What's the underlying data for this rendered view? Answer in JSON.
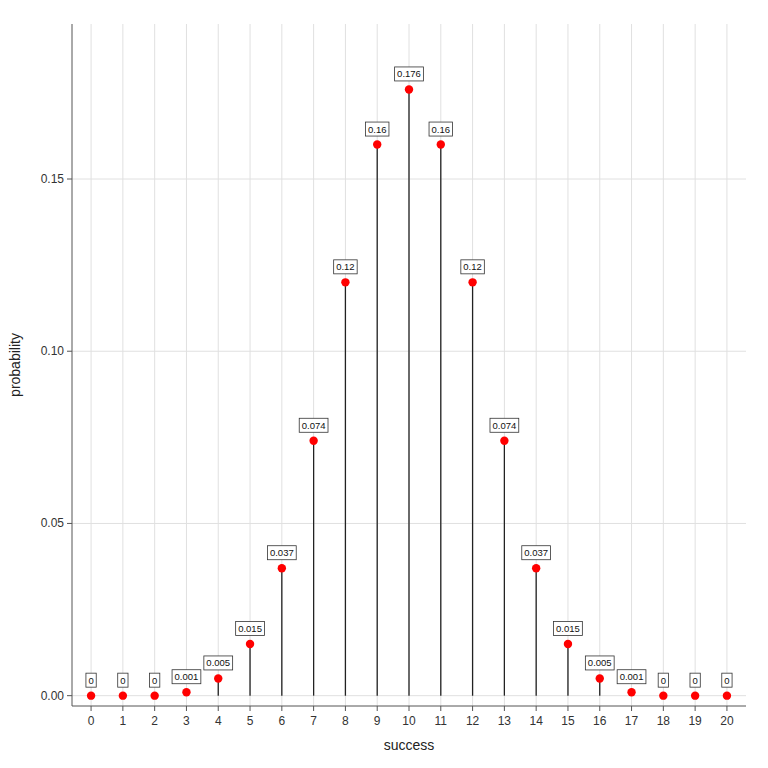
{
  "chart_data": {
    "type": "stem",
    "xlabel": "success",
    "ylabel": "probability",
    "x": [
      0,
      1,
      2,
      3,
      4,
      5,
      6,
      7,
      8,
      9,
      10,
      11,
      12,
      13,
      14,
      15,
      16,
      17,
      18,
      19,
      20
    ],
    "values": [
      0.0,
      0.0,
      0.0,
      0.001,
      0.005,
      0.015,
      0.037,
      0.074,
      0.12,
      0.16,
      0.176,
      0.16,
      0.12,
      0.074,
      0.037,
      0.015,
      0.005,
      0.001,
      0.0,
      0.0,
      0.0
    ],
    "color": "#FF0000",
    "xlim": [
      -0.6,
      20.6
    ],
    "ylim": [
      -0.003,
      0.195
    ],
    "xticks": [
      0,
      1,
      2,
      3,
      4,
      5,
      6,
      7,
      8,
      9,
      10,
      11,
      12,
      13,
      14,
      15,
      16,
      17,
      18,
      19,
      20
    ],
    "yticks": [
      {
        "value": 0,
        "label": "0.00"
      },
      0.05,
      {
        "value": 0.1,
        "label": "0.10"
      },
      0.15
    ],
    "grid": true,
    "data_labels": true
  }
}
